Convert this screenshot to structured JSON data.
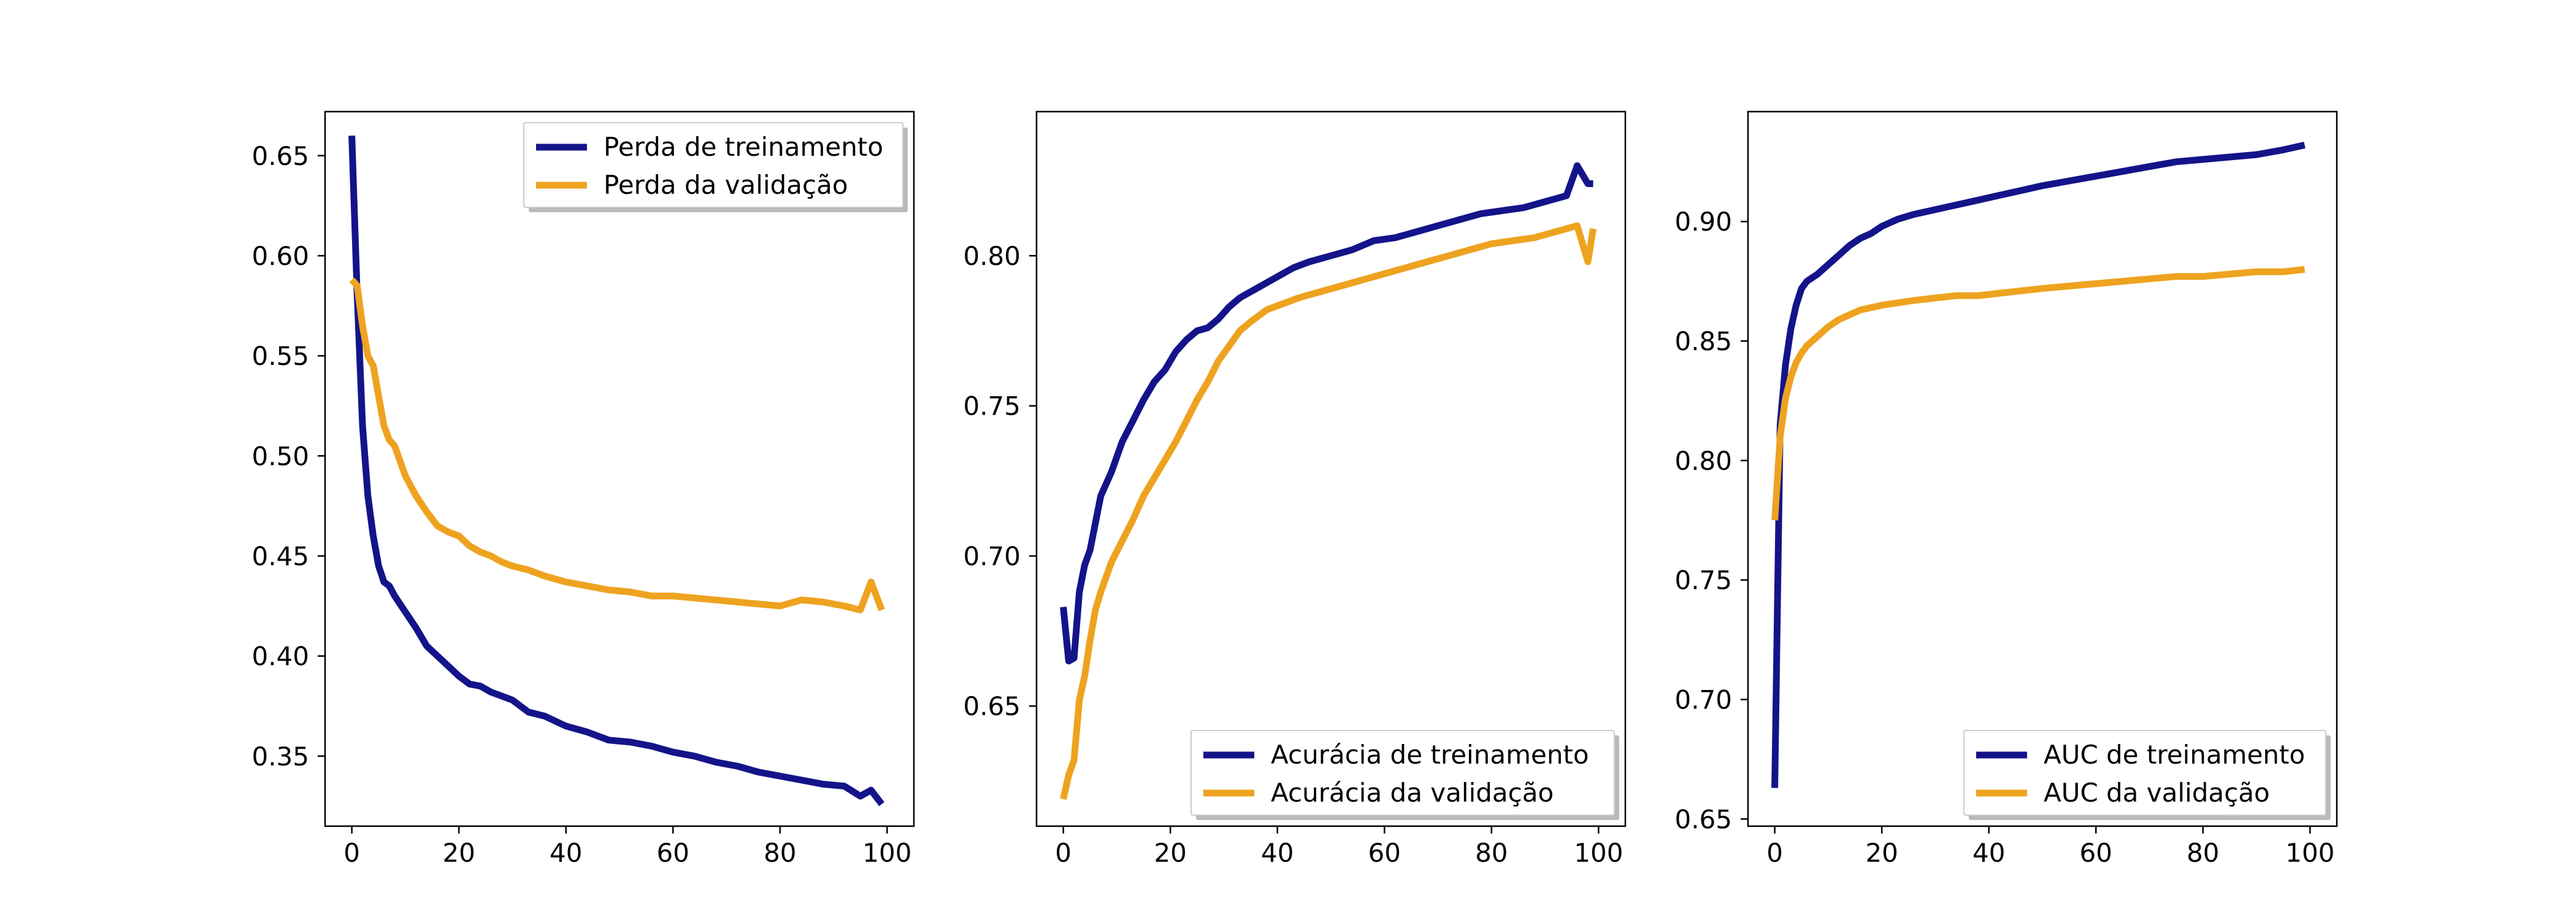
{
  "colors": {
    "train": "#14148a",
    "validation": "#eea320"
  },
  "chart_data": [
    {
      "type": "line",
      "title": "",
      "xlabel": "",
      "ylabel": "",
      "xlim": [
        -5,
        105
      ],
      "ylim": [
        0.315,
        0.672
      ],
      "xticks": [
        0,
        20,
        40,
        60,
        80,
        100
      ],
      "xtick_labels": [
        "0",
        "20",
        "40",
        "60",
        "80",
        "100"
      ],
      "yticks": [
        0.35,
        0.4,
        0.45,
        0.5,
        0.55,
        0.6,
        0.65
      ],
      "ytick_labels": [
        "0.35",
        "0.40",
        "0.45",
        "0.50",
        "0.55",
        "0.60",
        "0.65"
      ],
      "grid": false,
      "legend": "top-right",
      "series": [
        {
          "name": "Perda de treinamento",
          "x": [
            0,
            1,
            2,
            3,
            4,
            5,
            6,
            7,
            8,
            10,
            12,
            14,
            16,
            18,
            20,
            22,
            24,
            26,
            28,
            30,
            33,
            36,
            40,
            44,
            48,
            52,
            56,
            60,
            64,
            68,
            72,
            76,
            80,
            84,
            88,
            92,
            95,
            97,
            99
          ],
          "y": [
            0.66,
            0.58,
            0.515,
            0.48,
            0.46,
            0.445,
            0.437,
            0.435,
            0.43,
            0.422,
            0.414,
            0.405,
            0.4,
            0.395,
            0.39,
            0.386,
            0.385,
            0.382,
            0.38,
            0.378,
            0.372,
            0.37,
            0.365,
            0.362,
            0.358,
            0.357,
            0.355,
            0.352,
            0.35,
            0.347,
            0.345,
            0.342,
            0.34,
            0.338,
            0.336,
            0.335,
            0.33,
            0.333,
            0.326
          ]
        },
        {
          "name": "Perda da validação",
          "x": [
            0,
            1,
            2,
            3,
            4,
            5,
            6,
            7,
            8,
            10,
            12,
            14,
            16,
            18,
            20,
            22,
            24,
            26,
            28,
            30,
            33,
            36,
            40,
            44,
            48,
            52,
            56,
            60,
            64,
            68,
            72,
            76,
            80,
            84,
            88,
            92,
            95,
            97,
            99
          ],
          "y": [
            0.588,
            0.585,
            0.565,
            0.55,
            0.545,
            0.53,
            0.515,
            0.508,
            0.505,
            0.49,
            0.48,
            0.472,
            0.465,
            0.462,
            0.46,
            0.455,
            0.452,
            0.45,
            0.447,
            0.445,
            0.443,
            0.44,
            0.437,
            0.435,
            0.433,
            0.432,
            0.43,
            0.43,
            0.429,
            0.428,
            0.427,
            0.426,
            0.425,
            0.428,
            0.427,
            0.425,
            0.423,
            0.437,
            0.423
          ]
        }
      ]
    },
    {
      "type": "line",
      "title": "",
      "xlabel": "",
      "ylabel": "",
      "xlim": [
        -5,
        105
      ],
      "ylim": [
        0.61,
        0.848
      ],
      "xticks": [
        0,
        20,
        40,
        60,
        80,
        100
      ],
      "xtick_labels": [
        "0",
        "20",
        "40",
        "60",
        "80",
        "100"
      ],
      "yticks": [
        0.65,
        0.7,
        0.75,
        0.8
      ],
      "ytick_labels": [
        "0.65",
        "0.70",
        "0.75",
        "0.80"
      ],
      "grid": false,
      "legend": "bottom-right",
      "series": [
        {
          "name": "Acurácia de treinamento",
          "x": [
            0,
            1,
            2,
            3,
            4,
            5,
            7,
            9,
            11,
            13,
            15,
            17,
            19,
            21,
            23,
            25,
            27,
            29,
            31,
            33,
            35,
            37,
            40,
            43,
            46,
            50,
            54,
            58,
            62,
            66,
            70,
            74,
            78,
            82,
            86,
            90,
            94,
            96,
            98,
            99
          ],
          "y": [
            0.683,
            0.665,
            0.666,
            0.688,
            0.697,
            0.702,
            0.72,
            0.728,
            0.738,
            0.745,
            0.752,
            0.758,
            0.762,
            0.768,
            0.772,
            0.775,
            0.776,
            0.779,
            0.783,
            0.786,
            0.788,
            0.79,
            0.793,
            0.796,
            0.798,
            0.8,
            0.802,
            0.805,
            0.806,
            0.808,
            0.81,
            0.812,
            0.814,
            0.815,
            0.816,
            0.818,
            0.82,
            0.83,
            0.824,
            0.824
          ]
        },
        {
          "name": "Acurácia da validação",
          "x": [
            0,
            1,
            2,
            3,
            4,
            5,
            6,
            7,
            9,
            11,
            13,
            15,
            17,
            19,
            21,
            23,
            25,
            27,
            29,
            31,
            33,
            35,
            38,
            41,
            44,
            48,
            52,
            56,
            60,
            64,
            68,
            72,
            76,
            80,
            84,
            88,
            92,
            96,
            98,
            99
          ],
          "y": [
            0.619,
            0.627,
            0.632,
            0.652,
            0.66,
            0.672,
            0.682,
            0.688,
            0.698,
            0.705,
            0.712,
            0.72,
            0.726,
            0.732,
            0.738,
            0.745,
            0.752,
            0.758,
            0.765,
            0.77,
            0.775,
            0.778,
            0.782,
            0.784,
            0.786,
            0.788,
            0.79,
            0.792,
            0.794,
            0.796,
            0.798,
            0.8,
            0.802,
            0.804,
            0.805,
            0.806,
            0.808,
            0.81,
            0.798,
            0.809
          ]
        }
      ]
    },
    {
      "type": "line",
      "title": "",
      "xlabel": "",
      "ylabel": "",
      "xlim": [
        -5,
        105
      ],
      "ylim": [
        0.647,
        0.946
      ],
      "xticks": [
        0,
        20,
        40,
        60,
        80,
        100
      ],
      "xtick_labels": [
        "0",
        "20",
        "40",
        "60",
        "80",
        "100"
      ],
      "yticks": [
        0.65,
        0.7,
        0.75,
        0.8,
        0.85,
        0.9
      ],
      "ytick_labels": [
        "0.65",
        "0.70",
        "0.75",
        "0.80",
        "0.85",
        "0.90"
      ],
      "grid": false,
      "legend": "bottom-right",
      "series": [
        {
          "name": "AUC de treinamento",
          "x": [
            0,
            1,
            2,
            3,
            4,
            5,
            6,
            8,
            10,
            12,
            14,
            16,
            18,
            20,
            23,
            26,
            30,
            34,
            38,
            42,
            46,
            50,
            55,
            60,
            65,
            70,
            75,
            80,
            85,
            90,
            95,
            99
          ],
          "y": [
            0.663,
            0.815,
            0.84,
            0.855,
            0.865,
            0.872,
            0.875,
            0.878,
            0.882,
            0.886,
            0.89,
            0.893,
            0.895,
            0.898,
            0.901,
            0.903,
            0.905,
            0.907,
            0.909,
            0.911,
            0.913,
            0.915,
            0.917,
            0.919,
            0.921,
            0.923,
            0.925,
            0.926,
            0.927,
            0.928,
            0.93,
            0.932
          ]
        },
        {
          "name": "AUC da validação",
          "x": [
            0,
            1,
            2,
            3,
            4,
            5,
            6,
            8,
            10,
            12,
            14,
            16,
            18,
            20,
            23,
            26,
            30,
            34,
            38,
            42,
            46,
            50,
            55,
            60,
            65,
            70,
            75,
            80,
            85,
            90,
            95,
            99
          ],
          "y": [
            0.775,
            0.81,
            0.826,
            0.835,
            0.841,
            0.845,
            0.848,
            0.852,
            0.856,
            0.859,
            0.861,
            0.863,
            0.864,
            0.865,
            0.866,
            0.867,
            0.868,
            0.869,
            0.869,
            0.87,
            0.871,
            0.872,
            0.873,
            0.874,
            0.875,
            0.876,
            0.877,
            0.877,
            0.878,
            0.879,
            0.879,
            0.88
          ]
        }
      ]
    }
  ]
}
